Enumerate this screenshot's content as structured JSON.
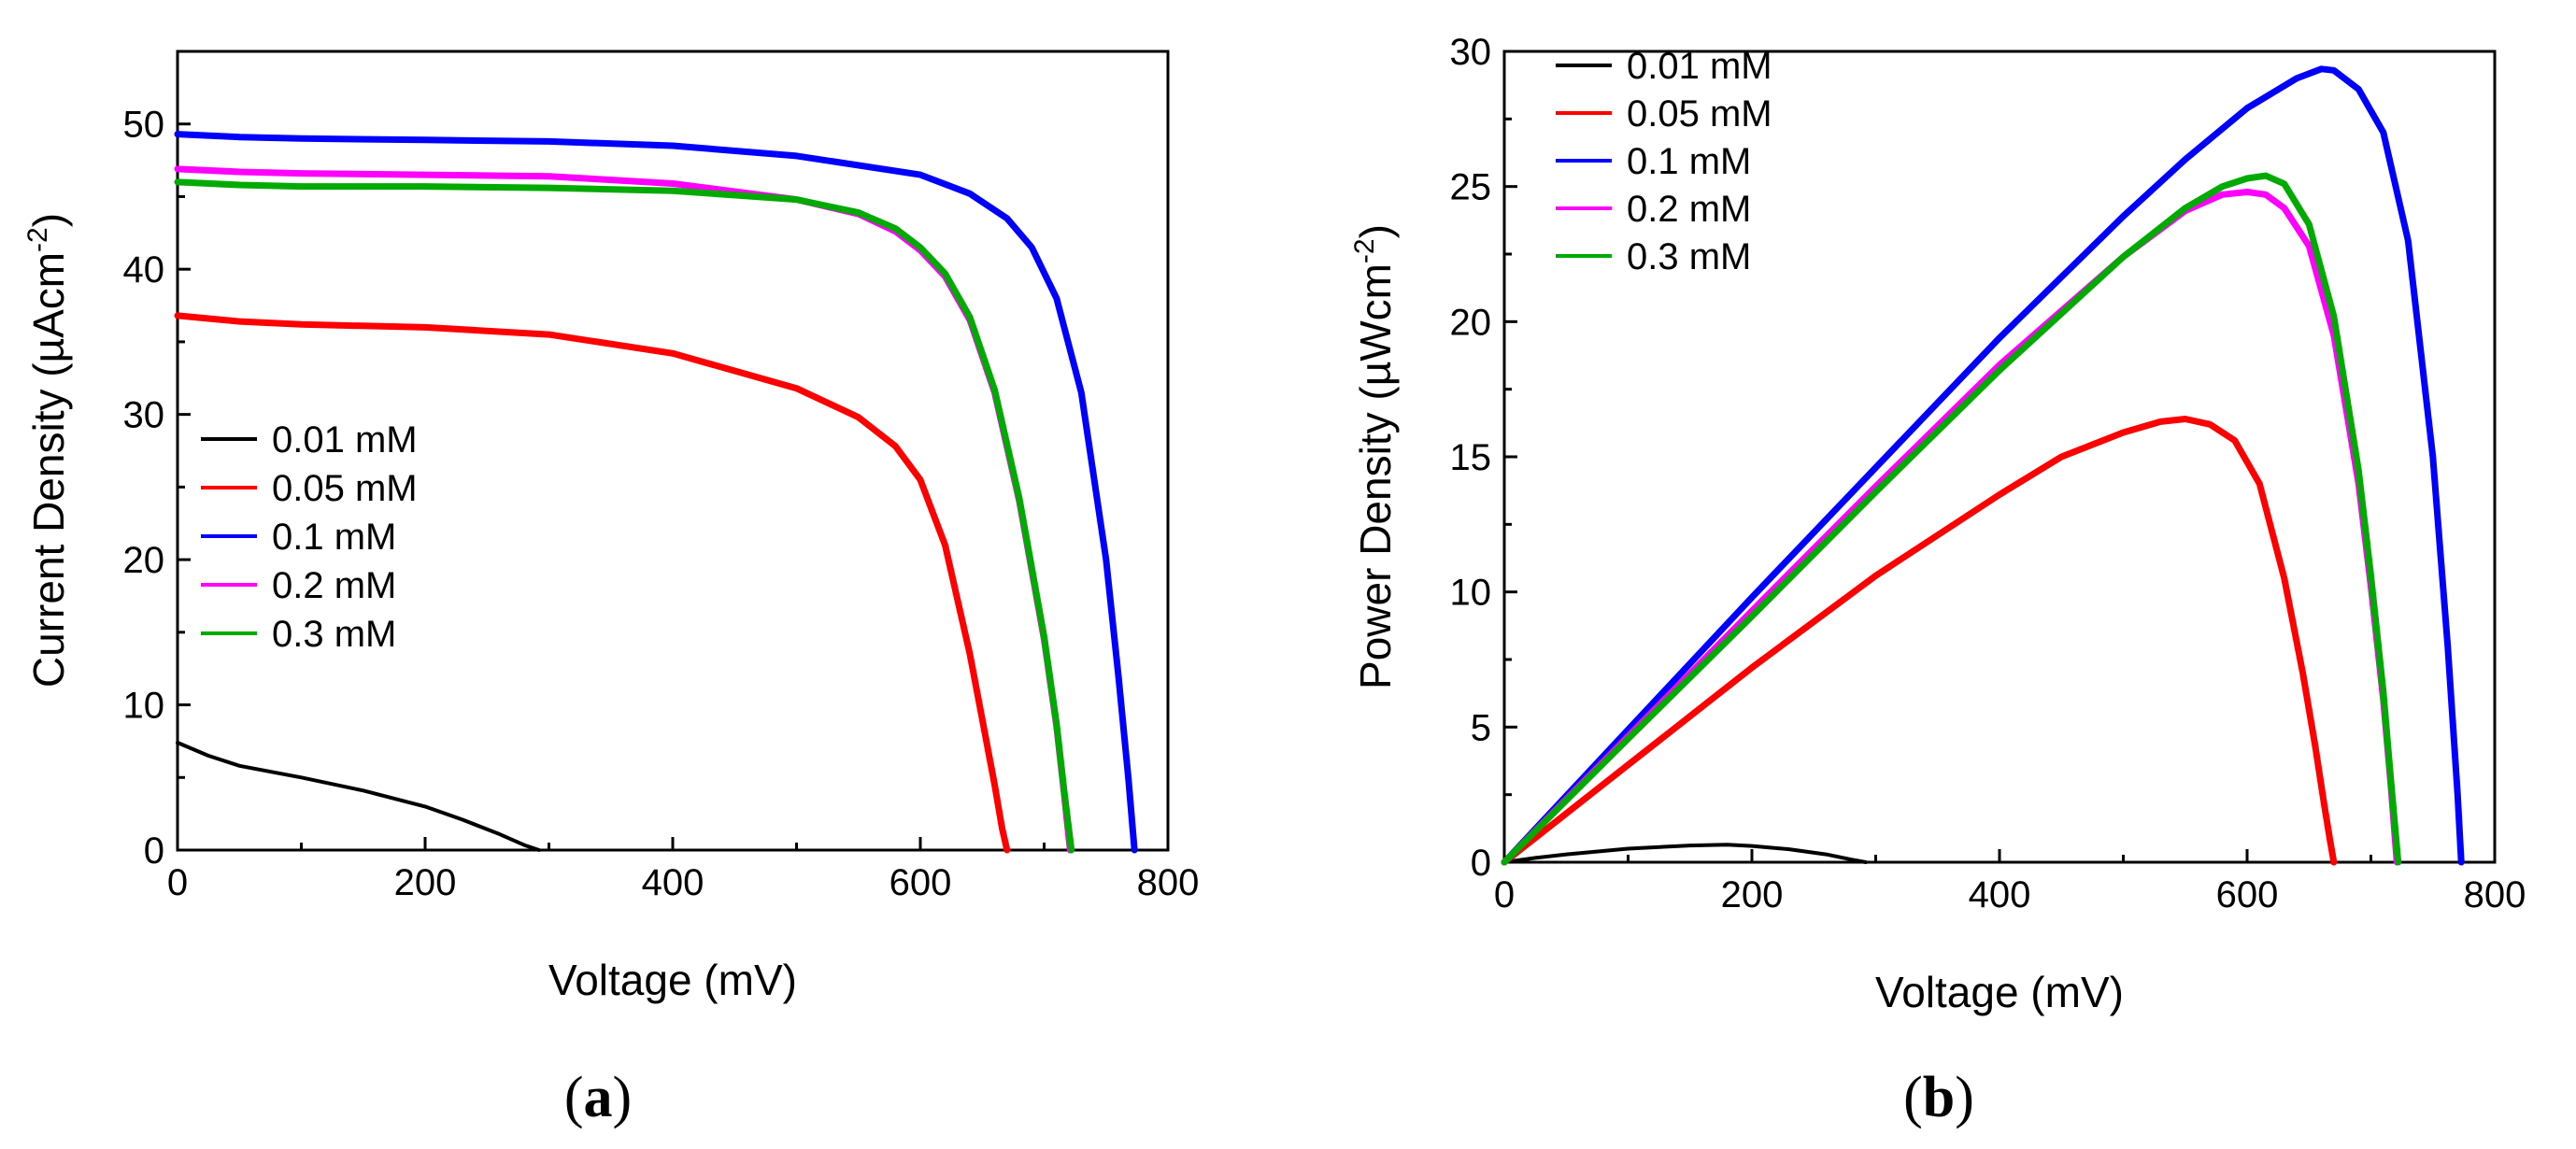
{
  "chart_data": [
    {
      "type": "line",
      "panel_label": "a",
      "xlabel": "Voltage (mV)",
      "ylabel_main": "Current Density (µAcm",
      "ylabel_sup": "-2",
      "ylabel_end": ")",
      "xlim": [
        0,
        800
      ],
      "ylim": [
        0,
        55
      ],
      "xticks": [
        0,
        200,
        400,
        600,
        800
      ],
      "yticks": [
        0,
        10,
        20,
        30,
        40,
        50
      ],
      "legend_position": "middle-left",
      "series": [
        {
          "name": "0.01 mM",
          "color": "#000000",
          "x": [
            0,
            25,
            50,
            100,
            150,
            200,
            230,
            260,
            280,
            292
          ],
          "y": [
            7.4,
            6.5,
            5.8,
            5.0,
            4.1,
            3.0,
            2.1,
            1.1,
            0.35,
            0
          ]
        },
        {
          "name": "0.05 mM",
          "color": "#ff0000",
          "x": [
            0,
            50,
            100,
            200,
            300,
            400,
            500,
            550,
            580,
            600,
            620,
            640,
            650,
            660,
            666,
            670
          ],
          "y": [
            36.8,
            36.4,
            36.2,
            36.0,
            35.5,
            34.2,
            31.8,
            29.8,
            27.8,
            25.5,
            21.0,
            13.5,
            9.0,
            4.5,
            1.5,
            0
          ]
        },
        {
          "name": "0.1 mM",
          "color": "#0000ff",
          "x": [
            0,
            50,
            100,
            200,
            300,
            400,
            500,
            600,
            640,
            670,
            690,
            710,
            730,
            750,
            760,
            768,
            773
          ],
          "y": [
            49.3,
            49.1,
            49.0,
            48.9,
            48.8,
            48.5,
            47.8,
            46.5,
            45.2,
            43.5,
            41.5,
            38.0,
            31.5,
            20.0,
            12.0,
            5.0,
            0
          ]
        },
        {
          "name": "0.2 mM",
          "color": "#ff00ff",
          "x": [
            0,
            50,
            100,
            200,
            300,
            400,
            500,
            550,
            580,
            600,
            620,
            640,
            660,
            680,
            700,
            710,
            716,
            721
          ],
          "y": [
            46.9,
            46.7,
            46.6,
            46.5,
            46.4,
            45.9,
            44.8,
            43.8,
            42.6,
            41.3,
            39.5,
            36.5,
            31.5,
            24.0,
            14.5,
            8.5,
            4.0,
            0
          ]
        },
        {
          "name": "0.3 mM",
          "color": "#00aa00",
          "x": [
            0,
            50,
            100,
            200,
            300,
            400,
            500,
            550,
            580,
            600,
            620,
            640,
            660,
            680,
            700,
            710,
            716,
            722
          ],
          "y": [
            46.0,
            45.8,
            45.7,
            45.7,
            45.6,
            45.4,
            44.8,
            43.9,
            42.8,
            41.5,
            39.7,
            36.7,
            31.7,
            24.2,
            14.7,
            8.7,
            4.2,
            0
          ]
        }
      ]
    },
    {
      "type": "line",
      "panel_label": "b",
      "xlabel": "Voltage (mV)",
      "ylabel_main": "Power Density (µWcm",
      "ylabel_sup": "-2",
      "ylabel_end": ")",
      "xlim": [
        0,
        800
      ],
      "ylim": [
        0,
        30
      ],
      "xticks": [
        0,
        200,
        400,
        600,
        800
      ],
      "yticks": [
        0,
        5,
        10,
        15,
        20,
        25,
        30
      ],
      "legend_position": "top-left",
      "series": [
        {
          "name": "0.01 mM",
          "color": "#000000",
          "x": [
            0,
            25,
            50,
            100,
            150,
            180,
            200,
            230,
            260,
            280,
            292
          ],
          "y": [
            0,
            0.16,
            0.29,
            0.5,
            0.62,
            0.65,
            0.6,
            0.48,
            0.29,
            0.1,
            0
          ]
        },
        {
          "name": "0.05 mM",
          "color": "#ff0000",
          "x": [
            0,
            50,
            100,
            200,
            300,
            400,
            450,
            500,
            530,
            550,
            570,
            590,
            610,
            630,
            645,
            655,
            662,
            667,
            670
          ],
          "y": [
            0,
            1.8,
            3.6,
            7.2,
            10.6,
            13.6,
            15.0,
            15.9,
            16.3,
            16.4,
            16.2,
            15.6,
            14.0,
            10.5,
            7.0,
            4.3,
            2.2,
            0.8,
            0
          ]
        },
        {
          "name": "0.1 mM",
          "color": "#0000ff",
          "x": [
            0,
            100,
            200,
            300,
            400,
            500,
            550,
            600,
            640,
            660,
            670,
            690,
            710,
            730,
            750,
            762,
            770,
            773
          ],
          "y": [
            0,
            4.9,
            9.8,
            14.6,
            19.4,
            23.9,
            26.0,
            27.9,
            29.0,
            29.35,
            29.3,
            28.6,
            27.0,
            23.0,
            15.0,
            8.0,
            2.5,
            0
          ]
        },
        {
          "name": "0.2 mM",
          "color": "#ff00ff",
          "x": [
            0,
            100,
            200,
            300,
            400,
            500,
            550,
            580,
            600,
            615,
            630,
            650,
            670,
            690,
            700,
            710,
            716,
            721
          ],
          "y": [
            0,
            4.66,
            9.3,
            13.9,
            18.4,
            22.4,
            24.1,
            24.7,
            24.8,
            24.7,
            24.2,
            22.8,
            19.5,
            14.0,
            10.2,
            6.0,
            2.9,
            0
          ]
        },
        {
          "name": "0.3 mM",
          "color": "#00aa00",
          "x": [
            0,
            100,
            200,
            300,
            400,
            500,
            550,
            580,
            600,
            615,
            630,
            650,
            670,
            690,
            700,
            710,
            716,
            722
          ],
          "y": [
            0,
            4.57,
            9.1,
            13.7,
            18.2,
            22.4,
            24.2,
            25.0,
            25.3,
            25.4,
            25.1,
            23.6,
            20.2,
            14.5,
            10.6,
            6.3,
            3.1,
            0
          ]
        }
      ]
    }
  ],
  "captions": {
    "a": {
      "open": "(",
      "letter": "a",
      "close": ")"
    },
    "b": {
      "open": "(",
      "letter": "b",
      "close": ")"
    }
  }
}
